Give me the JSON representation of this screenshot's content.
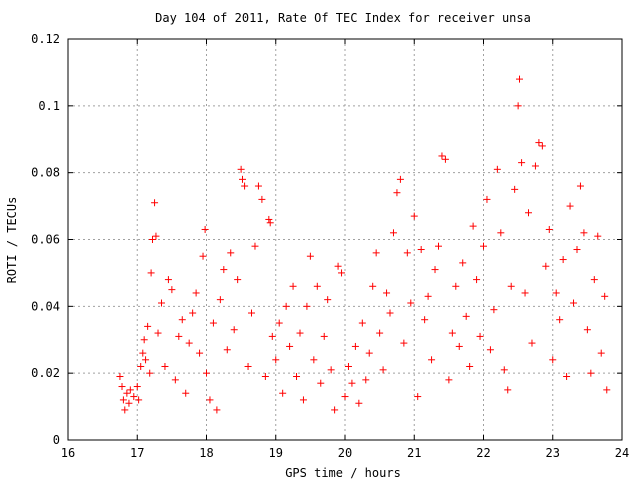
{
  "chart_data": {
    "type": "scatter",
    "title": "Day 104 of 2011, Rate Of TEC Index for receiver unsa",
    "xlabel": "GPS time / hours",
    "ylabel": "ROTI / TECUs",
    "xlim": [
      16,
      24
    ],
    "ylim": [
      0,
      0.12
    ],
    "x_ticks": [
      "16",
      "17",
      "18",
      "19",
      "20",
      "21",
      "22",
      "23",
      "24"
    ],
    "y_ticks": [
      "0",
      "0.02",
      "0.04",
      "0.06",
      "0.08",
      "0.1",
      "0.12"
    ],
    "grid": true,
    "marker": "+",
    "color": "#ff0000",
    "series": [
      {
        "points": [
          [
            16.75,
            0.019
          ],
          [
            16.78,
            0.016
          ],
          [
            16.8,
            0.012
          ],
          [
            16.82,
            0.009
          ],
          [
            16.85,
            0.014
          ],
          [
            16.88,
            0.011
          ],
          [
            16.9,
            0.015
          ],
          [
            16.95,
            0.013
          ],
          [
            17.0,
            0.016
          ],
          [
            17.02,
            0.012
          ],
          [
            17.05,
            0.022
          ],
          [
            17.08,
            0.026
          ],
          [
            17.1,
            0.03
          ],
          [
            17.12,
            0.024
          ],
          [
            17.15,
            0.034
          ],
          [
            17.18,
            0.02
          ],
          [
            17.2,
            0.05
          ],
          [
            17.22,
            0.06
          ],
          [
            17.25,
            0.071
          ],
          [
            17.27,
            0.061
          ],
          [
            17.3,
            0.032
          ],
          [
            17.35,
            0.041
          ],
          [
            17.4,
            0.022
          ],
          [
            17.45,
            0.048
          ],
          [
            17.5,
            0.045
          ],
          [
            17.55,
            0.018
          ],
          [
            17.6,
            0.031
          ],
          [
            17.65,
            0.036
          ],
          [
            17.7,
            0.014
          ],
          [
            17.75,
            0.029
          ],
          [
            17.8,
            0.038
          ],
          [
            17.85,
            0.044
          ],
          [
            17.9,
            0.026
          ],
          [
            17.95,
            0.055
          ],
          [
            17.98,
            0.063
          ],
          [
            18.0,
            0.02
          ],
          [
            18.05,
            0.012
          ],
          [
            18.1,
            0.035
          ],
          [
            18.15,
            0.009
          ],
          [
            18.2,
            0.042
          ],
          [
            18.25,
            0.051
          ],
          [
            18.3,
            0.027
          ],
          [
            18.35,
            0.056
          ],
          [
            18.4,
            0.033
          ],
          [
            18.45,
            0.048
          ],
          [
            18.5,
            0.081
          ],
          [
            18.52,
            0.078
          ],
          [
            18.55,
            0.076
          ],
          [
            18.6,
            0.022
          ],
          [
            18.65,
            0.038
          ],
          [
            18.7,
            0.058
          ],
          [
            18.75,
            0.076
          ],
          [
            18.8,
            0.072
          ],
          [
            18.85,
            0.019
          ],
          [
            18.9,
            0.066
          ],
          [
            18.92,
            0.065
          ],
          [
            18.95,
            0.031
          ],
          [
            19.0,
            0.024
          ],
          [
            19.05,
            0.035
          ],
          [
            19.1,
            0.014
          ],
          [
            19.15,
            0.04
          ],
          [
            19.2,
            0.028
          ],
          [
            19.25,
            0.046
          ],
          [
            19.3,
            0.019
          ],
          [
            19.35,
            0.032
          ],
          [
            19.4,
            0.012
          ],
          [
            19.45,
            0.04
          ],
          [
            19.5,
            0.055
          ],
          [
            19.55,
            0.024
          ],
          [
            19.6,
            0.046
          ],
          [
            19.65,
            0.017
          ],
          [
            19.7,
            0.031
          ],
          [
            19.75,
            0.042
          ],
          [
            19.8,
            0.021
          ],
          [
            19.85,
            0.009
          ],
          [
            19.9,
            0.052
          ],
          [
            19.95,
            0.05
          ],
          [
            20.0,
            0.013
          ],
          [
            20.05,
            0.022
          ],
          [
            20.1,
            0.017
          ],
          [
            20.15,
            0.028
          ],
          [
            20.2,
            0.011
          ],
          [
            20.25,
            0.035
          ],
          [
            20.3,
            0.018
          ],
          [
            20.35,
            0.026
          ],
          [
            20.4,
            0.046
          ],
          [
            20.45,
            0.056
          ],
          [
            20.5,
            0.032
          ],
          [
            20.55,
            0.021
          ],
          [
            20.6,
            0.044
          ],
          [
            20.65,
            0.038
          ],
          [
            20.7,
            0.062
          ],
          [
            20.75,
            0.074
          ],
          [
            20.8,
            0.078
          ],
          [
            20.85,
            0.029
          ],
          [
            20.9,
            0.056
          ],
          [
            20.95,
            0.041
          ],
          [
            21.0,
            0.067
          ],
          [
            21.05,
            0.013
          ],
          [
            21.1,
            0.057
          ],
          [
            21.15,
            0.036
          ],
          [
            21.2,
            0.043
          ],
          [
            21.25,
            0.024
          ],
          [
            21.3,
            0.051
          ],
          [
            21.35,
            0.058
          ],
          [
            21.4,
            0.085
          ],
          [
            21.45,
            0.084
          ],
          [
            21.5,
            0.018
          ],
          [
            21.55,
            0.032
          ],
          [
            21.6,
            0.046
          ],
          [
            21.65,
            0.028
          ],
          [
            21.7,
            0.053
          ],
          [
            21.75,
            0.037
          ],
          [
            21.8,
            0.022
          ],
          [
            21.85,
            0.064
          ],
          [
            21.9,
            0.048
          ],
          [
            21.95,
            0.031
          ],
          [
            22.0,
            0.058
          ],
          [
            22.05,
            0.072
          ],
          [
            22.1,
            0.027
          ],
          [
            22.15,
            0.039
          ],
          [
            22.2,
            0.081
          ],
          [
            22.25,
            0.062
          ],
          [
            22.3,
            0.021
          ],
          [
            22.35,
            0.015
          ],
          [
            22.4,
            0.046
          ],
          [
            22.45,
            0.075
          ],
          [
            22.5,
            0.1
          ],
          [
            22.52,
            0.108
          ],
          [
            22.55,
            0.083
          ],
          [
            22.6,
            0.044
          ],
          [
            22.65,
            0.068
          ],
          [
            22.7,
            0.029
          ],
          [
            22.75,
            0.082
          ],
          [
            22.8,
            0.089
          ],
          [
            22.85,
            0.088
          ],
          [
            22.9,
            0.052
          ],
          [
            22.95,
            0.063
          ],
          [
            23.0,
            0.024
          ],
          [
            23.05,
            0.044
          ],
          [
            23.1,
            0.036
          ],
          [
            23.15,
            0.054
          ],
          [
            23.2,
            0.019
          ],
          [
            23.25,
            0.07
          ],
          [
            23.3,
            0.041
          ],
          [
            23.35,
            0.057
          ],
          [
            23.4,
            0.076
          ],
          [
            23.45,
            0.062
          ],
          [
            23.5,
            0.033
          ],
          [
            23.55,
            0.02
          ],
          [
            23.6,
            0.048
          ],
          [
            23.65,
            0.061
          ],
          [
            23.7,
            0.026
          ],
          [
            23.75,
            0.043
          ],
          [
            23.78,
            0.015
          ]
        ]
      }
    ]
  }
}
